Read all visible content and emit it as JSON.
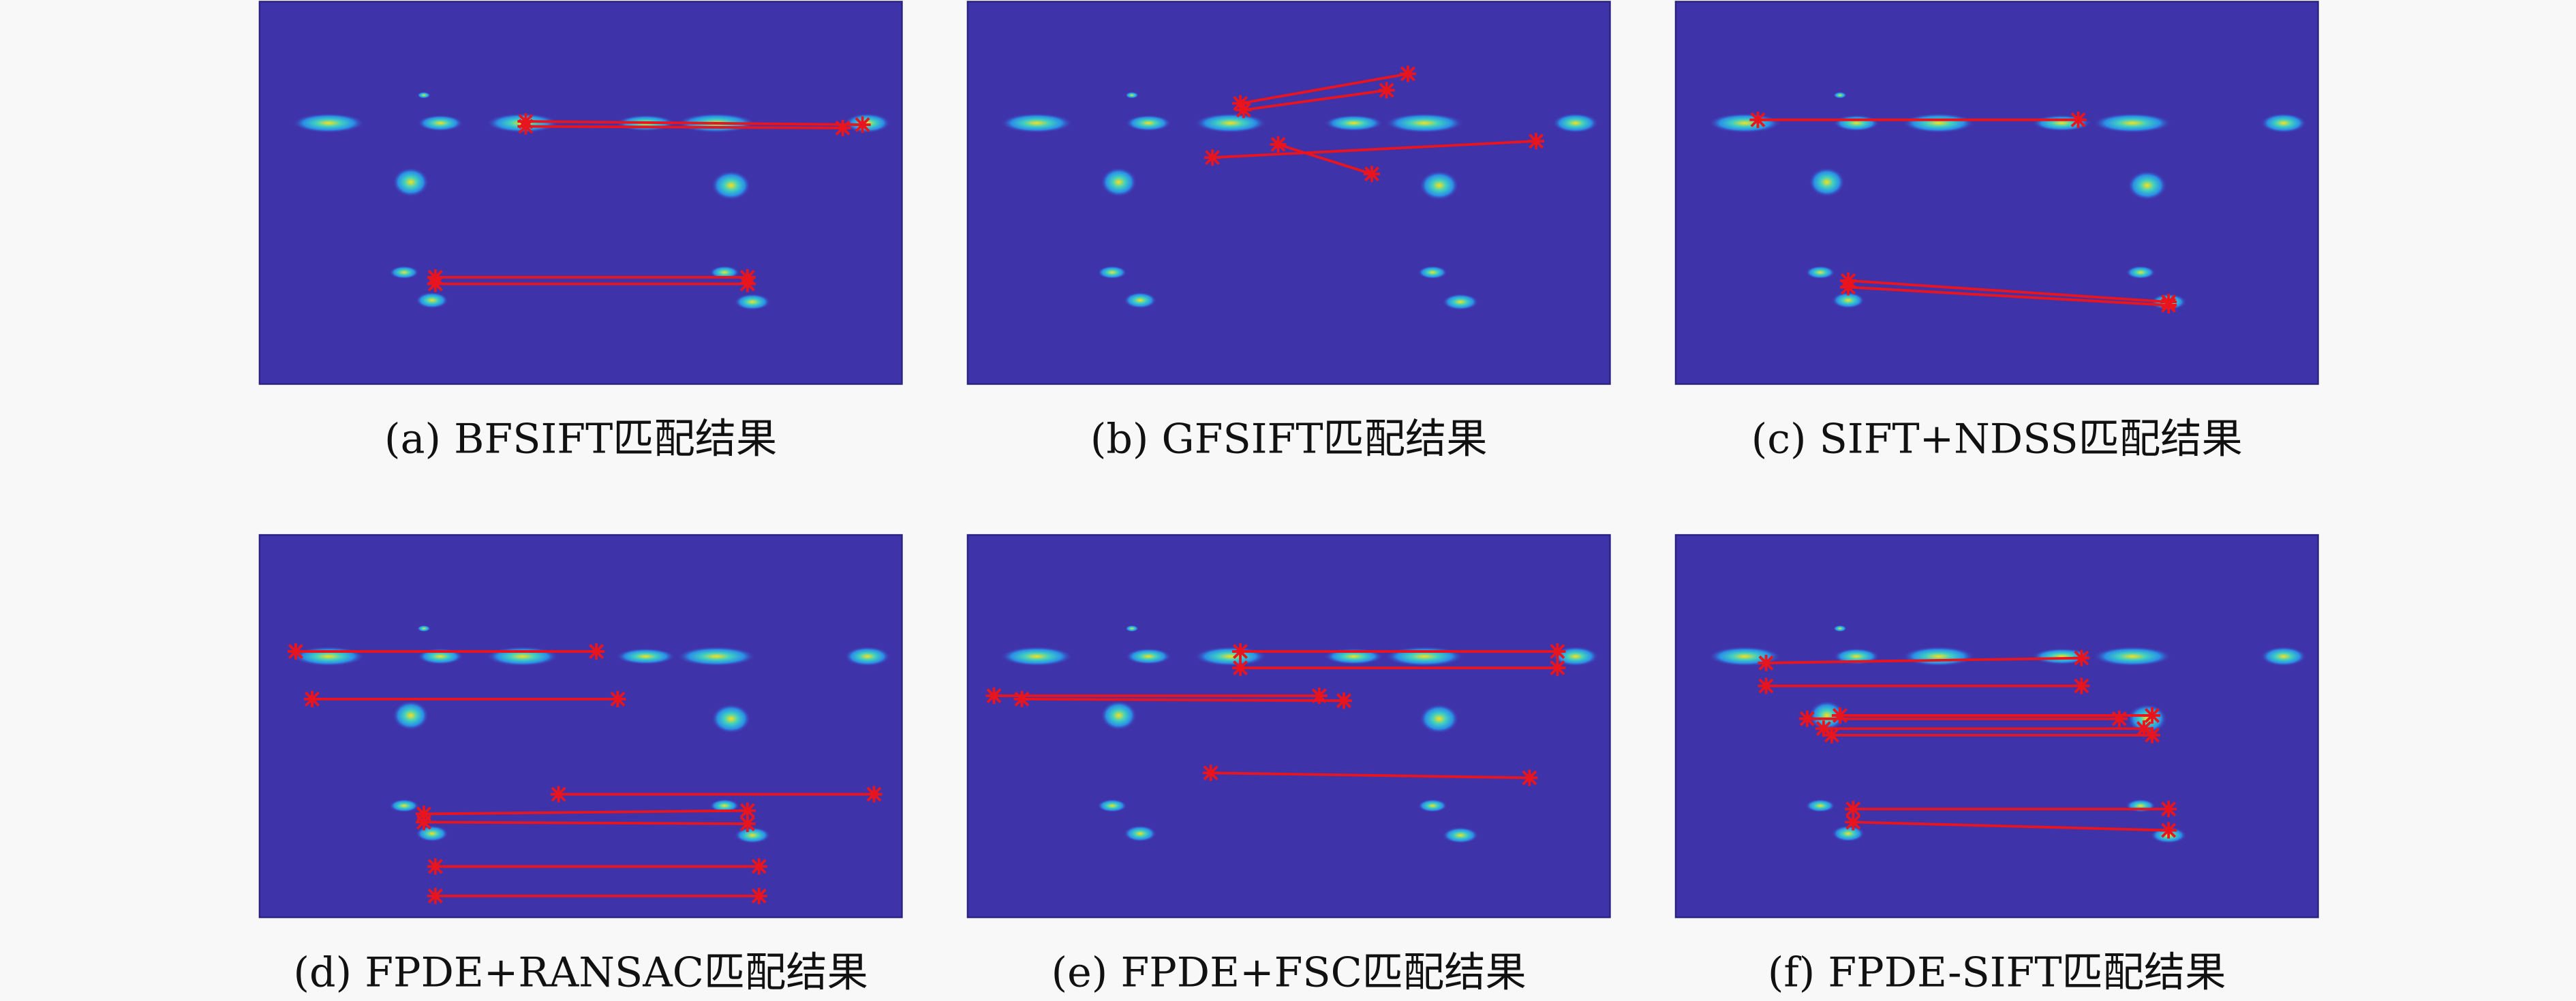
{
  "panels": [
    {
      "caption": "(a) BFSIFT匹配结果"
    },
    {
      "caption": "(b) GFSIFT匹配结果"
    },
    {
      "caption": "(c) SIFT+NDSS匹配结果"
    },
    {
      "caption": "(d) FPDE+RANSAC匹配结果"
    },
    {
      "caption": "(e) FPDE+FSC匹配结果"
    },
    {
      "caption": "(f) FPDE-SIFT匹配结果"
    }
  ]
}
